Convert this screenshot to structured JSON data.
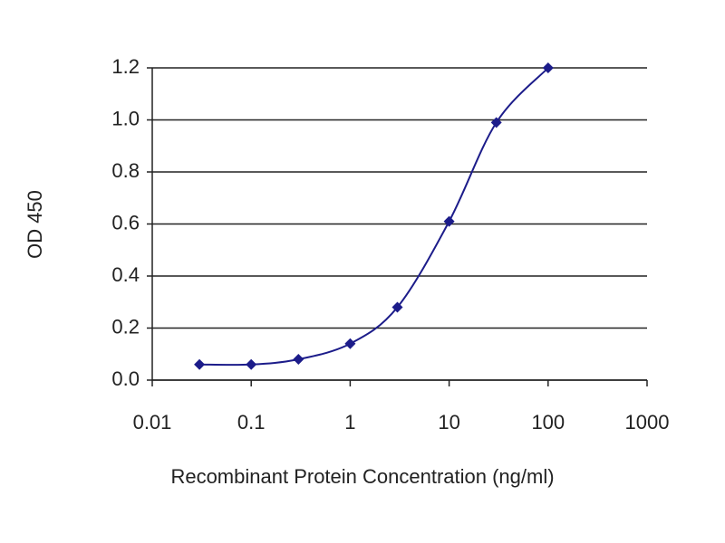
{
  "chart_data": {
    "type": "line",
    "xlabel": "Recombinant Protein Concentration (ng/ml)",
    "ylabel": "OD 450",
    "x": [
      0.03,
      0.1,
      0.3,
      1,
      3,
      10,
      30,
      100
    ],
    "series": [
      {
        "color": "#1c1c8a",
        "values": [
          0.06,
          0.06,
          0.08,
          0.14,
          0.28,
          0.61,
          0.99,
          1.2
        ]
      }
    ],
    "xscale": "log",
    "xlim": [
      0.01,
      1000
    ],
    "xticks": [
      0.01,
      0.1,
      1,
      10,
      100,
      1000
    ],
    "ylim": [
      0,
      1.2
    ],
    "yticks": [
      {
        "value": 0,
        "label": "0.0"
      },
      0.2,
      0.4,
      0.6,
      0.8,
      {
        "value": 1,
        "label": "1.0"
      },
      1.2
    ],
    "grid": true
  }
}
